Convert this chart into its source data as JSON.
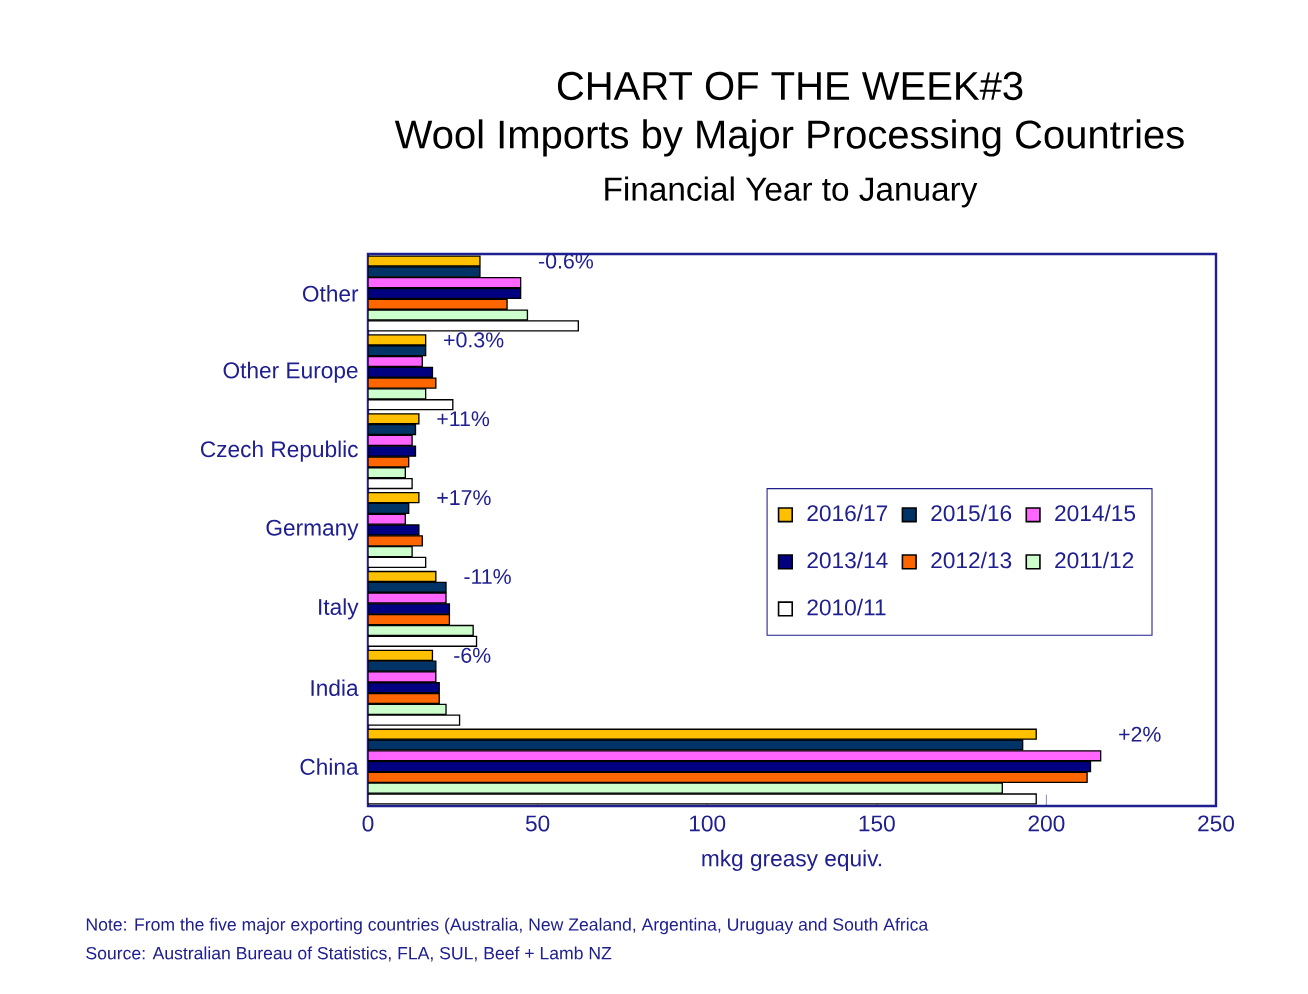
{
  "chart_data": {
    "type": "bar",
    "orientation": "horizontal",
    "title": "CHART OF THE WEEK#3",
    "subtitle": "Wool Imports by Major Processing Countries",
    "xlabel": "mkg greasy equiv.",
    "categories": [
      "Other",
      "Other Europe",
      "Czech Republic",
      "Germany",
      "Italy",
      "India",
      "China"
    ],
    "series": [
      {
        "name": "2016/17",
        "color": "#ffc000",
        "values": [
          33,
          17,
          15,
          15,
          20,
          19,
          197
        ]
      },
      {
        "name": "2015/16",
        "color": "#003366",
        "values": [
          33,
          17,
          14,
          12,
          23,
          20,
          193
        ]
      },
      {
        "name": "2014/15",
        "color": "#ff66ff",
        "values": [
          45,
          16,
          13,
          11,
          23,
          20,
          216
        ]
      },
      {
        "name": "2013/14",
        "color": "#000080",
        "values": [
          45,
          19,
          14,
          15,
          24,
          21,
          213
        ]
      },
      {
        "name": "2012/13",
        "color": "#ff6600",
        "values": [
          41,
          20,
          12,
          16,
          24,
          21,
          212
        ]
      },
      {
        "name": "2011/12",
        "color": "#ccffcc",
        "values": [
          47,
          17,
          11,
          13,
          31,
          23,
          187
        ]
      },
      {
        "name": "2010/11",
        "color": "#ffffff",
        "values": [
          62,
          25,
          13,
          17,
          32,
          27,
          197
        ]
      }
    ],
    "xlim": [
      0,
      250
    ],
    "xticks": [
      0,
      50,
      100,
      150,
      200,
      250
    ],
    "grid": false,
    "legend": "right",
    "annotations": [
      "Financial Year to January",
      "-0.6%",
      "+0.3%",
      "+11%",
      "+17%",
      "-11%",
      "-6%",
      "+2%",
      "Note:      From the five major exporting countries (Australia, New Zealand, Argentina, Uruguay and South Africa",
      "Source:   Australian Bureau of Statistics, FLA, SUL, Beef + Lamb NZ"
    ]
  }
}
